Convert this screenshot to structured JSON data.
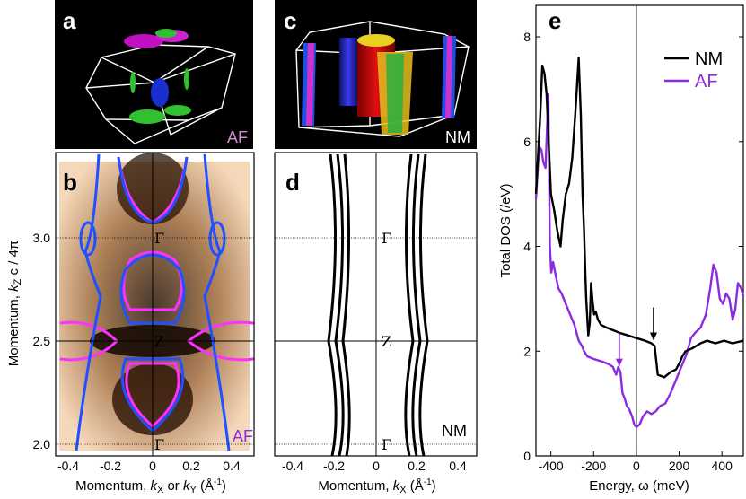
{
  "panels": {
    "a": {
      "letter": "a",
      "tag": "AF"
    },
    "b": {
      "letter": "b",
      "tag": "AF"
    },
    "c": {
      "letter": "c",
      "tag": "NM"
    },
    "d": {
      "letter": "d",
      "tag": "NM"
    },
    "e": {
      "letter": "e"
    }
  },
  "momentum_plots": {
    "ylabel_prefix": "Momentum, ",
    "ylabel_k": "k",
    "ylabel_sub": "Z",
    "ylabel_suffix": " c / 4π",
    "xlabel_b_prefix": "Momentum, ",
    "xlabel_b_k1": "k",
    "xlabel_b_sub1": "X",
    "xlabel_b_or": " or ",
    "xlabel_b_k2": "k",
    "xlabel_b_sub2": "Y",
    "xlabel_b_unit": " (Å",
    "xlabel_b_exp": "-1",
    "xlabel_b_close": ")",
    "xlabel_d_prefix": "Momentum, ",
    "xlabel_d_k": "k",
    "xlabel_d_sub": "X",
    "xlabel_d_unit": " (Å",
    "xlabel_d_exp": "-1",
    "xlabel_d_close": ")",
    "yticks": [
      "2.0",
      "2.5",
      "3.0"
    ],
    "xticks": [
      "-0.4",
      "-0.2",
      "0",
      "0.2",
      "0.4"
    ],
    "points": {
      "gamma_top": "Γ",
      "z": "Z",
      "gamma_bottom": "Γ"
    }
  },
  "chart_data": {
    "type": "line",
    "xlabel": "Energy, ω (meV)",
    "ylabel": "Total DOS (/eV)",
    "xlim": [
      -470,
      500
    ],
    "ylim": [
      0,
      8.6
    ],
    "xticks": [
      -400,
      -200,
      0,
      200,
      400
    ],
    "yticks": [
      0,
      2,
      4,
      6,
      8
    ],
    "legend_position": "top-right",
    "grid": false,
    "series": [
      {
        "name": "NM",
        "color": "#000000",
        "x": [
          -470,
          -450,
          -440,
          -430,
          -420,
          -400,
          -385,
          -370,
          -355,
          -345,
          -330,
          -315,
          -300,
          -285,
          -270,
          -260,
          -252,
          -245,
          -240,
          -235,
          -225,
          -218,
          -212,
          -205,
          -198,
          -190,
          -180,
          -165,
          -140,
          -110,
          -80,
          -40,
          0,
          40,
          70,
          85,
          100,
          130,
          160,
          185,
          205,
          215,
          230,
          260,
          300,
          330,
          370,
          410,
          450,
          500
        ],
        "y": [
          5.0,
          6.5,
          7.45,
          7.3,
          6.9,
          5.0,
          4.7,
          4.3,
          4.0,
          4.5,
          5.0,
          5.2,
          5.7,
          6.6,
          7.6,
          6.5,
          5.0,
          4.3,
          3.6,
          3.0,
          2.3,
          2.55,
          3.3,
          2.95,
          2.7,
          2.75,
          2.6,
          2.5,
          2.45,
          2.4,
          2.35,
          2.3,
          2.25,
          2.2,
          2.15,
          2.1,
          1.55,
          1.5,
          1.6,
          1.65,
          1.8,
          1.9,
          2.0,
          2.05,
          2.15,
          2.2,
          2.15,
          2.2,
          2.15,
          2.2
        ]
      },
      {
        "name": "AF",
        "color": "#8A2BE2",
        "x": [
          -470,
          -455,
          -445,
          -435,
          -425,
          -412,
          -405,
          -398,
          -390,
          -380,
          -365,
          -350,
          -330,
          -310,
          -290,
          -270,
          -255,
          -245,
          -230,
          -200,
          -160,
          -130,
          -110,
          -95,
          -85,
          -75,
          -65,
          -55,
          -45,
          -35,
          -20,
          -10,
          0,
          15,
          30,
          50,
          70,
          90,
          110,
          135,
          160,
          185,
          210,
          235,
          255,
          275,
          300,
          325,
          345,
          360,
          375,
          390,
          405,
          420,
          435,
          450,
          462,
          475,
          490,
          500
        ],
        "y": [
          4.9,
          5.9,
          5.85,
          5.6,
          5.5,
          6.9,
          4.0,
          3.5,
          3.7,
          3.5,
          3.2,
          3.1,
          2.9,
          2.7,
          2.5,
          2.2,
          2.1,
          2.0,
          1.9,
          1.85,
          1.8,
          1.75,
          1.7,
          1.55,
          1.7,
          1.6,
          1.2,
          1.1,
          0.95,
          0.9,
          0.75,
          0.6,
          0.55,
          0.6,
          0.75,
          0.85,
          0.8,
          0.85,
          0.95,
          1.0,
          1.2,
          1.45,
          1.7,
          1.95,
          2.25,
          2.35,
          2.45,
          2.7,
          3.2,
          3.65,
          3.5,
          3.0,
          2.9,
          3.1,
          3.0,
          2.6,
          2.8,
          3.3,
          3.2,
          3.05
        ]
      }
    ],
    "annotations": [
      {
        "type": "arrow",
        "series": "NM",
        "x": 80,
        "y": 2.15
      },
      {
        "type": "arrow",
        "series": "AF",
        "x": -80,
        "y": 1.65
      }
    ],
    "zero_line_x": 0
  }
}
